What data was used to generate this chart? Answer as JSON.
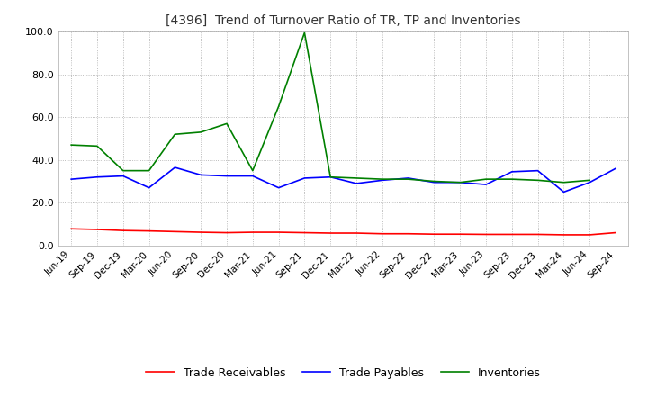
{
  "title": "[4396]  Trend of Turnover Ratio of TR, TP and Inventories",
  "ylim": [
    0,
    100
  ],
  "x_labels": [
    "Jun-19",
    "Sep-19",
    "Dec-19",
    "Mar-20",
    "Jun-20",
    "Sep-20",
    "Dec-20",
    "Mar-21",
    "Jun-21",
    "Sep-21",
    "Dec-21",
    "Mar-22",
    "Jun-22",
    "Sep-22",
    "Dec-22",
    "Mar-23",
    "Jun-23",
    "Sep-23",
    "Dec-23",
    "Mar-24",
    "Jun-24",
    "Sep-24"
  ],
  "trade_receivables": [
    7.8,
    7.5,
    7.0,
    6.8,
    6.5,
    6.2,
    6.0,
    6.2,
    6.2,
    6.0,
    5.8,
    5.8,
    5.5,
    5.5,
    5.3,
    5.3,
    5.2,
    5.2,
    5.2,
    5.0,
    5.0,
    6.0
  ],
  "trade_payables": [
    31.0,
    32.0,
    32.5,
    27.0,
    36.5,
    33.0,
    32.5,
    32.5,
    27.0,
    31.5,
    32.0,
    29.0,
    30.5,
    31.5,
    29.5,
    29.5,
    28.5,
    34.5,
    35.0,
    25.0,
    29.5,
    36.0
  ],
  "inventories": [
    47.0,
    46.5,
    35.0,
    35.0,
    52.0,
    53.0,
    57.0,
    35.0,
    65.0,
    99.5,
    32.0,
    31.5,
    31.0,
    31.0,
    30.0,
    29.5,
    31.0,
    31.0,
    30.5,
    29.5,
    30.5,
    null
  ],
  "colors": {
    "trade_receivables": "#ff0000",
    "trade_payables": "#0000ff",
    "inventories": "#008000"
  },
  "legend_labels": [
    "Trade Receivables",
    "Trade Payables",
    "Inventories"
  ],
  "background_color": "#ffffff",
  "grid_color": "#aaaaaa"
}
